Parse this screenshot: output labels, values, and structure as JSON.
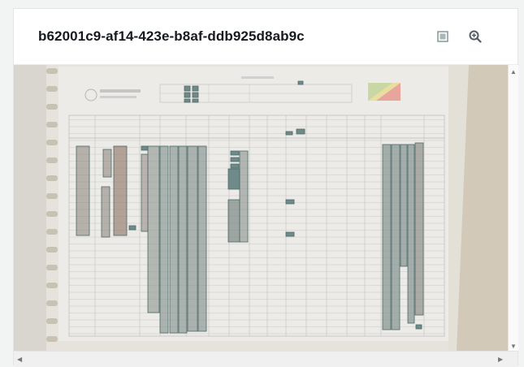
{
  "document": {
    "id_title": "b62001c9-af14-423e-b8af-ddb925d8ab9c"
  },
  "toolbar": {
    "toggle_overlay_icon": "square-outline-icon",
    "zoom_icon": "zoom-in-icon"
  },
  "colors": {
    "accent": "#545b64",
    "box_stroke": "#4e6a69",
    "box_fill": "#6f8a88"
  }
}
